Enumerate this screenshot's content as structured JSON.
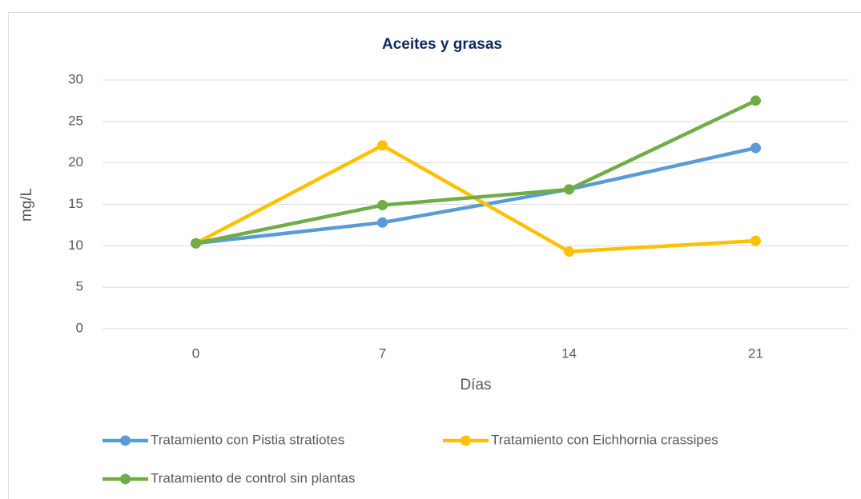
{
  "chart_data": {
    "type": "line",
    "title": "Aceites y grasas",
    "x_label": "Días",
    "y_label": "mg/L",
    "categories": [
      "0",
      "7",
      "14",
      "21"
    ],
    "series": [
      {
        "name": "Tratamiento con Pistia stratiotes",
        "color": "#5b9bd5",
        "values": [
          10.3,
          12.8,
          16.8,
          21.8
        ]
      },
      {
        "name": "Tratamiento con Eichhornia crassipes",
        "color": "#ffc000",
        "values": [
          10.3,
          22.1,
          9.3,
          10.6
        ]
      },
      {
        "name": "Tratamiento de control sin plantas",
        "color": "#70ad47",
        "values": [
          10.3,
          14.9,
          16.8,
          27.5
        ]
      }
    ],
    "ylim": [
      0,
      30
    ],
    "yticks": [
      0,
      5,
      10,
      15,
      20,
      25,
      30
    ],
    "grid": true,
    "legend": "bottom"
  }
}
